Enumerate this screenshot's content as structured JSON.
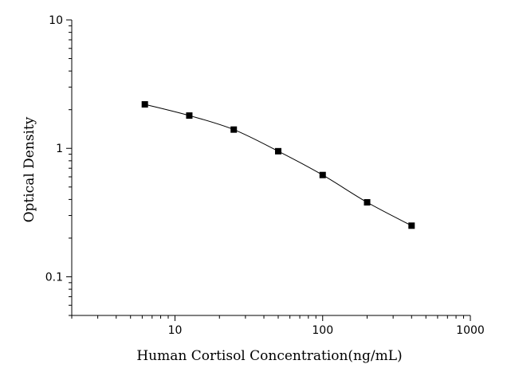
{
  "chart_data": {
    "type": "scatter",
    "xscale": "log",
    "yscale": "log",
    "xlim": [
      2,
      1000
    ],
    "ylim": [
      0.05,
      10
    ],
    "xlabel": "Human Cortisol Concentration(ng/mL)",
    "ylabel": "Optical Density",
    "x_ticks": [
      {
        "value": 10,
        "label": "10"
      },
      {
        "value": 100,
        "label": "100"
      },
      {
        "value": 1000,
        "label": "1000"
      }
    ],
    "y_ticks": [
      {
        "value": 0.1,
        "label": "0.1"
      },
      {
        "value": 1,
        "label": "1"
      },
      {
        "value": 10,
        "label": "10"
      }
    ],
    "grid": false,
    "series": [
      {
        "x": [
          6.25,
          12.5,
          25,
          50,
          100,
          200,
          400
        ],
        "y": [
          2.2,
          1.8,
          1.4,
          0.95,
          0.62,
          0.38,
          0.25
        ],
        "marker": "square",
        "line": "smooth",
        "color": "#000000"
      }
    ]
  }
}
